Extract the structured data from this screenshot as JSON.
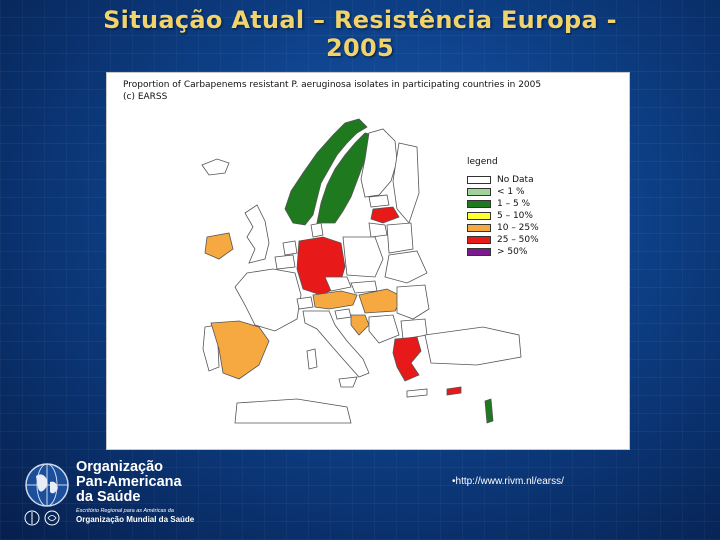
{
  "slide": {
    "title_line1": "Situação Atual – Resistência Europa -",
    "title_line2": "2005",
    "source_url": "•http://www.rivm.nl/earss/"
  },
  "map": {
    "heading_line1": "Proportion of Carbapenems resistant P. aeruginosa isolates in participating countries in 2005",
    "heading_line2": "(c) EARSS",
    "legend_title": "legend",
    "legend": [
      {
        "label": "No Data",
        "color": "#ffffff"
      },
      {
        "label": "< 1 %",
        "color": "#9fd49a"
      },
      {
        "label": "1 – 5 %",
        "color": "#1f7a1f"
      },
      {
        "label": "5 – 10%",
        "color": "#ffff33"
      },
      {
        "label": "10 – 25%",
        "color": "#f7a941"
      },
      {
        "label": "25 – 50%",
        "color": "#e81919"
      },
      {
        "label": "> 50%",
        "color": "#7a1a8c"
      }
    ],
    "country_categories": {
      "norway": "1 – 5 %",
      "sweden": "1 – 5 %",
      "latvia": "25 – 50%",
      "ireland": "10 – 25%",
      "germany": "25 – 50%",
      "spain": "10 – 25%",
      "austria": "10 – 25%",
      "hungary": "10 – 25%",
      "croatia": "10 – 25%",
      "greece": "25 – 50%",
      "cyprus": "25 – 50%",
      "israel": "1 – 5 %"
    }
  },
  "logo": {
    "line1": "Organização",
    "line2": "Pan-Americana",
    "line3": "da Saúde",
    "sub": "Escritório Regional para as Américas da",
    "who": "Organização Mundial da Saúde"
  },
  "colors": {
    "title": "#f1d36b",
    "background": "#0b3a7e",
    "no_data": "#ffffff",
    "orange": "#f7a941",
    "red": "#e81919",
    "green": "#1f7a1f"
  }
}
